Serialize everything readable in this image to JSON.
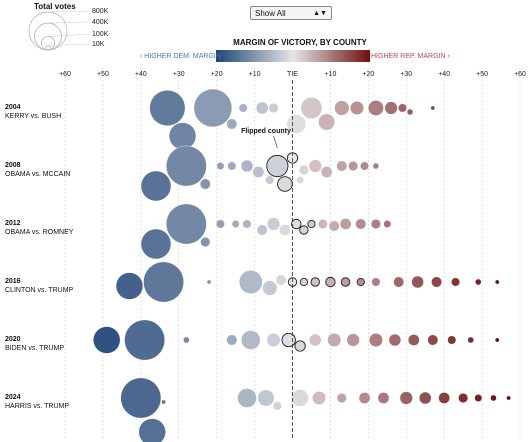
{
  "legend": {
    "title": "Total votes",
    "sizes": [
      {
        "label": "800K",
        "votes": 800000
      },
      {
        "label": "400K",
        "votes": 400000
      },
      {
        "label": "100K",
        "votes": 100000
      },
      {
        "label": "10K",
        "votes": 10000
      }
    ]
  },
  "filter": {
    "selected": "Show All",
    "arrow_icon": "updown-arrow-icon"
  },
  "scale": {
    "title": "MARGIN OF VICTORY, BY COUNTY",
    "dem_label": "‹ HIGHER DEM. MARGIN",
    "rep_label": "HIGHER REP. MARGIN ›",
    "colors": {
      "dem_dark": "#1f4477",
      "rep_dark": "#6b0f12",
      "tie": "#e6e6e6"
    }
  },
  "annotation": {
    "flipped": "Flipped county"
  },
  "chart_data": {
    "type": "scatter",
    "title": "MARGIN OF VICTORY, BY COUNTY",
    "x_unit": "margin in points, negative = Democratic",
    "xlim": [
      -60,
      60
    ],
    "xticks": [
      {
        "value": -60,
        "label": "+60"
      },
      {
        "value": -50,
        "label": "+50"
      },
      {
        "value": -40,
        "label": "+40"
      },
      {
        "value": -30,
        "label": "+30"
      },
      {
        "value": -20,
        "label": "+20"
      },
      {
        "value": -10,
        "label": "+10"
      },
      {
        "value": 0,
        "label": "TIE"
      },
      {
        "value": 10,
        "label": "+10"
      },
      {
        "value": 20,
        "label": "+20"
      },
      {
        "value": 30,
        "label": "+30"
      },
      {
        "value": 40,
        "label": "+40"
      },
      {
        "value": 50,
        "label": "+50"
      },
      {
        "value": 60,
        "label": "+60"
      }
    ],
    "grid": true,
    "rows": [
      {
        "year": "2004",
        "matchup": "KERRY vs. BUSH",
        "counties": [
          [
            -33,
            700000,
            0
          ],
          [
            -29,
            400000,
            0
          ],
          [
            -21,
            800000,
            0
          ],
          [
            -16,
            60000,
            0
          ],
          [
            -13,
            40000,
            0
          ],
          [
            -8,
            80000,
            0
          ],
          [
            -5,
            50000,
            0
          ],
          [
            1,
            200000,
            0
          ],
          [
            5,
            250000,
            0
          ],
          [
            9,
            150000,
            0
          ],
          [
            13,
            120000,
            0
          ],
          [
            17,
            100000,
            0
          ],
          [
            22,
            130000,
            0
          ],
          [
            26,
            90000,
            0
          ],
          [
            29,
            40000,
            0
          ],
          [
            31,
            20000,
            0
          ],
          [
            37,
            10000,
            0
          ]
        ]
      },
      {
        "year": "2008",
        "matchup": "OBAMA vs. MCCAIN",
        "counties": [
          [
            -36,
            500000,
            0
          ],
          [
            -28,
            900000,
            0
          ],
          [
            -23,
            60000,
            0
          ],
          [
            -19,
            30000,
            0
          ],
          [
            -16,
            40000,
            0
          ],
          [
            -12,
            80000,
            0
          ],
          [
            -9,
            70000,
            0
          ],
          [
            -6,
            40000,
            0
          ],
          [
            -4,
            250000,
            1
          ],
          [
            -2,
            120000,
            1
          ],
          [
            0,
            60000,
            1
          ],
          [
            2,
            30000,
            0
          ],
          [
            3,
            50000,
            0
          ],
          [
            6,
            90000,
            0
          ],
          [
            9,
            70000,
            0
          ],
          [
            13,
            60000,
            0
          ],
          [
            16,
            50000,
            0
          ],
          [
            19,
            40000,
            0
          ],
          [
            22,
            20000,
            0
          ]
        ]
      },
      {
        "year": "2012",
        "matchup": "OBAMA vs. ROMNEY",
        "counties": [
          [
            -36,
            500000,
            0
          ],
          [
            -28,
            900000,
            0
          ],
          [
            -23,
            50000,
            0
          ],
          [
            -19,
            40000,
            0
          ],
          [
            -15,
            30000,
            0
          ],
          [
            -12,
            40000,
            0
          ],
          [
            -8,
            60000,
            0
          ],
          [
            -5,
            90000,
            0
          ],
          [
            -2,
            70000,
            0
          ],
          [
            1,
            50000,
            1
          ],
          [
            3,
            40000,
            1
          ],
          [
            5,
            30000,
            1
          ],
          [
            8,
            50000,
            0
          ],
          [
            11,
            60000,
            0
          ],
          [
            14,
            70000,
            0
          ],
          [
            18,
            60000,
            0
          ],
          [
            22,
            50000,
            0
          ],
          [
            25,
            30000,
            0
          ]
        ]
      },
      {
        "year": "2016",
        "matchup": "CLINTON vs. TRUMP",
        "counties": [
          [
            -43,
            400000,
            0
          ],
          [
            -34,
            900000,
            0
          ],
          [
            -22,
            10000,
            0
          ],
          [
            -11,
            300000,
            0
          ],
          [
            -6,
            120000,
            0
          ],
          [
            -3,
            60000,
            0
          ],
          [
            0,
            40000,
            1
          ],
          [
            3,
            30000,
            1
          ],
          [
            6,
            40000,
            1
          ],
          [
            10,
            50000,
            1
          ],
          [
            14,
            40000,
            1
          ],
          [
            18,
            30000,
            1
          ],
          [
            22,
            40000,
            0
          ],
          [
            28,
            60000,
            0
          ],
          [
            33,
            80000,
            0
          ],
          [
            38,
            60000,
            0
          ],
          [
            43,
            40000,
            0
          ],
          [
            49,
            20000,
            0
          ],
          [
            54,
            10000,
            0
          ]
        ]
      },
      {
        "year": "2020",
        "matchup": "BIDEN vs. TRUMP",
        "counties": [
          [
            -49,
            400000,
            0
          ],
          [
            -39,
            900000,
            0
          ],
          [
            -28,
            20000,
            0
          ],
          [
            -16,
            60000,
            0
          ],
          [
            -11,
            200000,
            0
          ],
          [
            -5,
            100000,
            0
          ],
          [
            -1,
            100000,
            1
          ],
          [
            2,
            60000,
            1
          ],
          [
            6,
            80000,
            0
          ],
          [
            11,
            100000,
            0
          ],
          [
            16,
            90000,
            0
          ],
          [
            22,
            100000,
            0
          ],
          [
            27,
            80000,
            0
          ],
          [
            32,
            70000,
            0
          ],
          [
            37,
            60000,
            0
          ],
          [
            42,
            40000,
            0
          ],
          [
            47,
            20000,
            0
          ],
          [
            54,
            10000,
            0
          ]
        ]
      },
      {
        "year": "2024",
        "matchup": "HARRIS vs. TRUMP",
        "counties": [
          [
            -40,
            900000,
            0
          ],
          [
            -37,
            400000,
            0
          ],
          [
            -34,
            10000,
            0
          ],
          [
            -12,
            200000,
            0
          ],
          [
            -7,
            150000,
            0
          ],
          [
            -4,
            40000,
            0
          ],
          [
            2,
            160000,
            0
          ],
          [
            7,
            100000,
            0
          ],
          [
            13,
            50000,
            0
          ],
          [
            19,
            70000,
            0
          ],
          [
            24,
            70000,
            0
          ],
          [
            30,
            90000,
            0
          ],
          [
            35,
            80000,
            0
          ],
          [
            40,
            70000,
            0
          ],
          [
            45,
            50000,
            0
          ],
          [
            49,
            30000,
            0
          ],
          [
            53,
            20000,
            0
          ],
          [
            57,
            10000,
            0
          ]
        ]
      }
    ]
  }
}
